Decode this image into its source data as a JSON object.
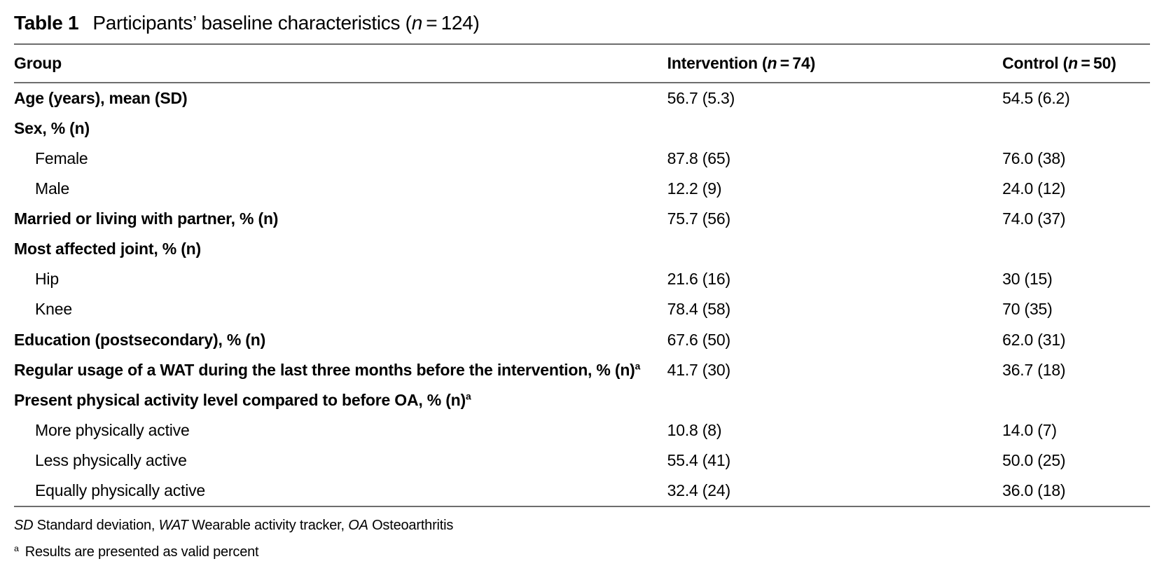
{
  "title": {
    "label": "Table 1",
    "caption_pre": "Participants’ baseline characteristics (",
    "caption_n": "n",
    "caption_post": " = 124)"
  },
  "table": {
    "header": {
      "group": "Group",
      "intervention_pre": "Intervention (",
      "intervention_n": "n",
      "intervention_post": " = 74)",
      "control_pre": "Control (",
      "control_n": "n",
      "control_post": " = 50)"
    },
    "rows": [
      {
        "label": "Age (years), mean (SD)",
        "intervention": "56.7 (5.3)",
        "control": "54.5 (6.2)"
      },
      {
        "label": "Sex, % (n)",
        "intervention": "",
        "control": ""
      },
      {
        "label": "Female",
        "intervention": "87.8 (65)",
        "control": "76.0 (38)"
      },
      {
        "label": "Male",
        "intervention": "12.2 (9)",
        "control": "24.0 (12)"
      },
      {
        "label": "Married or living with partner, % (n)",
        "intervention": "75.7 (56)",
        "control": "74.0 (37)"
      },
      {
        "label": "Most affected joint, % (n)",
        "intervention": "",
        "control": ""
      },
      {
        "label": "Hip",
        "intervention": "21.6 (16)",
        "control": "30 (15)"
      },
      {
        "label": "Knee",
        "intervention": "78.4 (58)",
        "control": "70 (35)"
      },
      {
        "label": "Education (postsecondary), % (n)",
        "intervention": "67.6 (50)",
        "control": "62.0 (31)"
      },
      {
        "label": "Regular usage of a WAT during the last three months before the intervention, % (n)",
        "sup": "a",
        "intervention": "41.7 (30)",
        "control": "36.7 (18)"
      },
      {
        "label": "Present physical activity level compared to before OA, % (n)",
        "sup": "a",
        "intervention": "",
        "control": ""
      },
      {
        "label": "More physically active",
        "intervention": "10.8 (8)",
        "control": "14.0 (7)"
      },
      {
        "label": "Less physically active",
        "intervention": "55.4 (41)",
        "control": "50.0 (25)"
      },
      {
        "label": "Equally physically active",
        "intervention": "32.4 (24)",
        "control": "36.0 (18)"
      }
    ]
  },
  "footnotes": {
    "abbrev": [
      {
        "abbr": "SD",
        "text": " Standard deviation, "
      },
      {
        "abbr": "WAT",
        "text": " Wearable activity tracker, "
      },
      {
        "abbr": "OA",
        "text": " Osteoarthritis"
      }
    ],
    "note_a_marker": "a",
    "note_a_text": "Results are presented as valid percent"
  },
  "colors": {
    "rule": "#6d6d6d",
    "text": "#000000",
    "background": "#ffffff"
  }
}
